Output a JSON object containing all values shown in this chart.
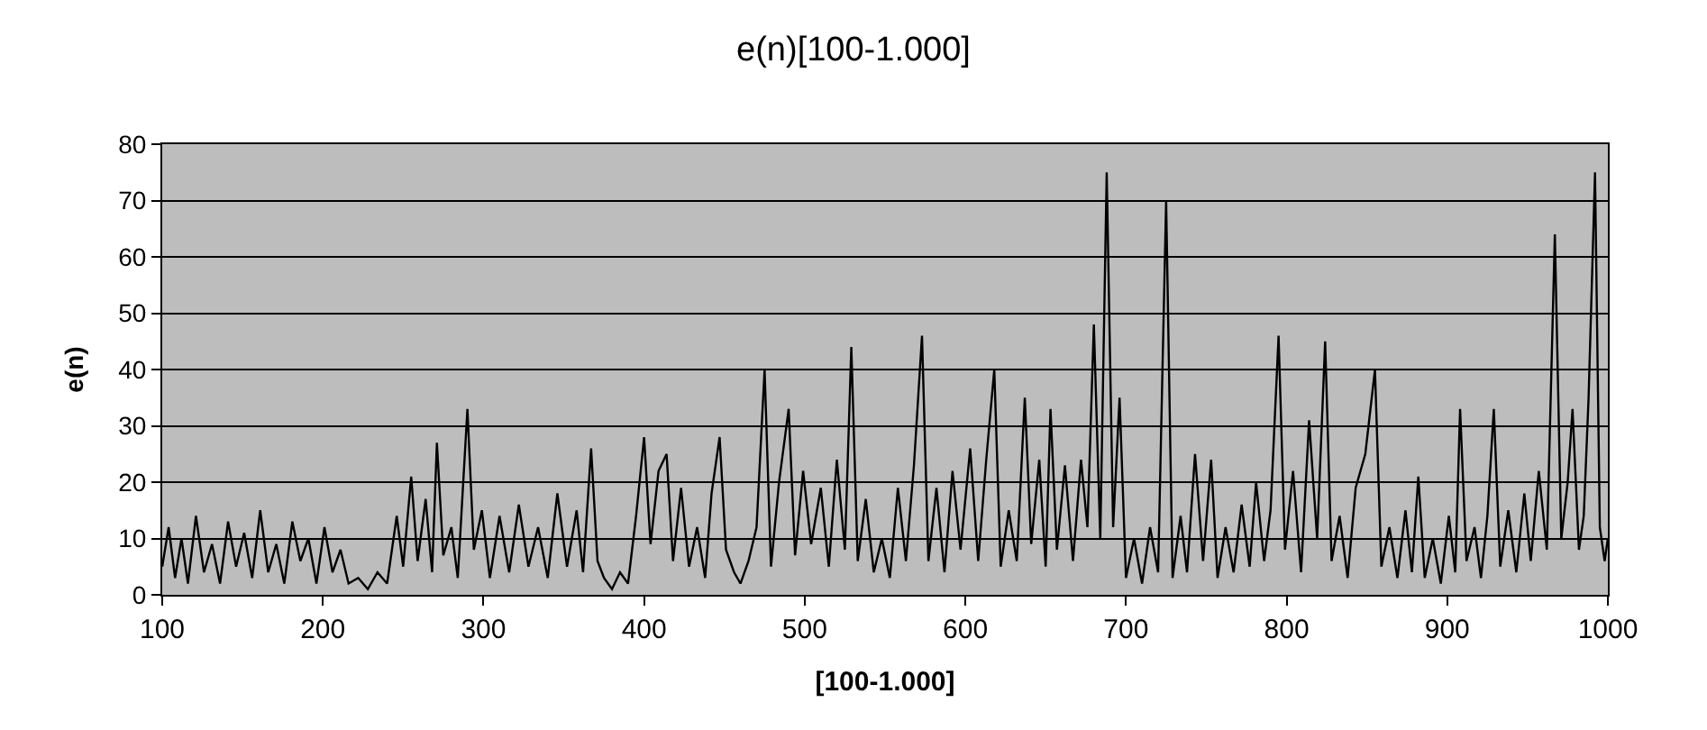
{
  "chart_data": {
    "type": "line",
    "title": "e(n)[100-1.000]",
    "xlabel": "[100-1.000]",
    "ylabel": "e(n)",
    "x": [
      100,
      104,
      108,
      112,
      116,
      121,
      126,
      131,
      136,
      141,
      146,
      151,
      156,
      161,
      166,
      171,
      176,
      181,
      186,
      191,
      196,
      201,
      206,
      211,
      216,
      222,
      228,
      234,
      240,
      246,
      250,
      255,
      259,
      264,
      268,
      271,
      275,
      280,
      284,
      290,
      294,
      299,
      304,
      310,
      316,
      322,
      328,
      334,
      340,
      346,
      352,
      358,
      362,
      367,
      371,
      375,
      380,
      385,
      390,
      395,
      400,
      404,
      409,
      414,
      418,
      423,
      428,
      433,
      438,
      442,
      447,
      451,
      456,
      460,
      465,
      470,
      475,
      479,
      484,
      490,
      494,
      499,
      504,
      510,
      515,
      520,
      525,
      529,
      533,
      538,
      543,
      548,
      553,
      558,
      563,
      568,
      573,
      577,
      582,
      587,
      592,
      597,
      603,
      608,
      613,
      618,
      622,
      627,
      632,
      637,
      641,
      646,
      650,
      653,
      657,
      662,
      667,
      672,
      676,
      680,
      684,
      688,
      692,
      696,
      700,
      705,
      710,
      715,
      720,
      725,
      729,
      734,
      738,
      743,
      748,
      753,
      757,
      762,
      767,
      772,
      777,
      781,
      786,
      790,
      795,
      799,
      804,
      809,
      814,
      819,
      824,
      828,
      833,
      838,
      843,
      849,
      855,
      859,
      864,
      869,
      874,
      878,
      882,
      886,
      891,
      896,
      901,
      905,
      908,
      912,
      917,
      921,
      925,
      929,
      933,
      938,
      943,
      948,
      952,
      957,
      962,
      967,
      971,
      975,
      978,
      982,
      985,
      988,
      992,
      995,
      998,
      1000
    ],
    "series": [
      {
        "color": "#000000",
        "values": [
          5,
          12,
          3,
          10,
          2,
          14,
          4,
          9,
          2,
          13,
          5,
          11,
          3,
          15,
          4,
          9,
          2,
          13,
          6,
          10,
          2,
          12,
          4,
          8,
          2,
          3,
          1,
          4,
          2,
          14,
          5,
          21,
          6,
          17,
          4,
          27,
          7,
          12,
          3,
          33,
          8,
          15,
          3,
          14,
          4,
          16,
          5,
          12,
          3,
          18,
          5,
          15,
          4,
          26,
          6,
          3,
          1,
          4,
          2,
          14,
          28,
          9,
          22,
          25,
          6,
          19,
          5,
          12,
          3,
          18,
          28,
          8,
          4,
          2,
          6,
          12,
          40,
          5,
          20,
          33,
          7,
          22,
          9,
          19,
          5,
          24,
          8,
          44,
          6,
          17,
          4,
          10,
          3,
          19,
          6,
          23,
          46,
          6,
          19,
          4,
          22,
          8,
          26,
          6,
          24,
          40,
          5,
          15,
          6,
          35,
          9,
          24,
          5,
          33,
          8,
          23,
          6,
          24,
          12,
          48,
          10,
          75,
          12,
          35,
          3,
          10,
          2,
          12,
          4,
          70,
          3,
          14,
          4,
          25,
          6,
          24,
          3,
          12,
          4,
          16,
          5,
          20,
          6,
          15,
          46,
          8,
          22,
          4,
          31,
          10,
          45,
          6,
          14,
          3,
          19,
          25,
          40,
          5,
          12,
          3,
          15,
          4,
          21,
          3,
          10,
          2,
          14,
          4,
          33,
          6,
          12,
          3,
          14,
          33,
          5,
          15,
          4,
          18,
          6,
          22,
          8,
          64,
          10,
          20,
          33,
          8,
          14,
          35,
          75,
          12,
          6,
          10
        ]
      }
    ],
    "xlim": [
      100,
      1000
    ],
    "xticks": [
      100,
      200,
      300,
      400,
      500,
      600,
      700,
      800,
      900,
      1000
    ],
    "ylim": [
      0,
      80
    ],
    "yticks": [
      0,
      10,
      20,
      30,
      40,
      50,
      60,
      70,
      80
    ],
    "grid": "y",
    "legend": false,
    "line_style": "solid",
    "marker": "none"
  }
}
